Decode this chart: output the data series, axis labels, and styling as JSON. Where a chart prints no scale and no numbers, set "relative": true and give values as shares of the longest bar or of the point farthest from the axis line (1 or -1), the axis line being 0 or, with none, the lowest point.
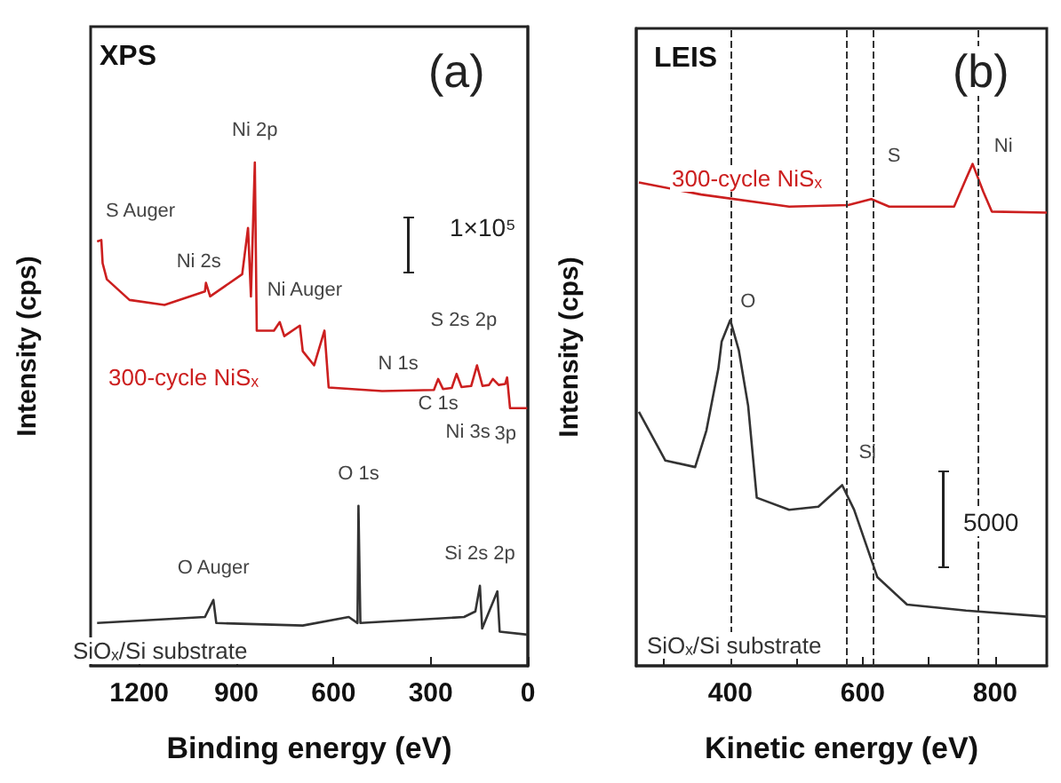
{
  "chart_data": [
    {
      "type": "line",
      "title": "XPS",
      "xlabel": "Binding energy (eV)",
      "ylabel": "Intensity (cps)",
      "relative": true,
      "tick_labels": "x",
      "legend": false,
      "xlim": [
        1350,
        0
      ],
      "xticks": [
        1200,
        900,
        600,
        300,
        0
      ],
      "series": [
        {
          "name": "300-cycle NiSₓ",
          "color": "#cc1f1f",
          "x": [
            1330,
            1317,
            1313,
            1300,
            1230,
            1122,
            997,
            994,
            981,
            882,
            864,
            855,
            843,
            837,
            784,
            766,
            752,
            704,
            695,
            660,
            628,
            615,
            450,
            290,
            277,
            262,
            235,
            220,
            205,
            175,
            157,
            140,
            120,
            108,
            90,
            70,
            64,
            55,
            2
          ],
          "values": [
            0.843,
            0.846,
            0.8,
            0.768,
            0.727,
            0.717,
            0.744,
            0.761,
            0.734,
            0.778,
            0.87,
            0.734,
            1.0,
            0.666,
            0.666,
            0.683,
            0.655,
            0.676,
            0.625,
            0.597,
            0.666,
            0.553,
            0.546,
            0.548,
            0.57,
            0.55,
            0.552,
            0.58,
            0.554,
            0.556,
            0.597,
            0.556,
            0.558,
            0.57,
            0.558,
            0.56,
            0.573,
            0.512,
            0.512
          ]
        },
        {
          "name": "SiOₓ/Si substrate",
          "color": "#333333",
          "x": [
            1330,
            997,
            971,
            962,
            695,
            553,
            526,
            523,
            517,
            197,
            162,
            148,
            141,
            94,
            87,
            2
          ],
          "values": [
            0.085,
            0.097,
            0.131,
            0.085,
            0.08,
            0.097,
            0.085,
            0.318,
            0.085,
            0.097,
            0.108,
            0.159,
            0.074,
            0.148,
            0.068,
            0.062
          ]
        }
      ],
      "annotations": [
        "(a)",
        "1×10⁵",
        {
          "text": "S Auger",
          "x": 1317,
          "y": 0.846
        },
        {
          "text": "Ni 2s",
          "x": 994,
          "y": 0.761
        },
        {
          "text": "Ni 2p",
          "x": 843,
          "y": 1.0
        },
        {
          "text": "Ni Auger",
          "x": 766,
          "y": 0.683
        },
        {
          "text": "N 1s",
          "x": 400,
          "y": 0.55
        },
        {
          "text": "S 2s 2p",
          "x": 220,
          "y": 0.58
        },
        {
          "text": "C 1s",
          "x": 277,
          "y": 0.57
        },
        {
          "text": "Ni 3s",
          "x": 108,
          "y": 0.57
        },
        {
          "text": "3p",
          "x": 64,
          "y": 0.573
        },
        {
          "text": "O Auger",
          "x": 971,
          "y": 0.131
        },
        {
          "text": "O 1s",
          "x": 523,
          "y": 0.318
        },
        {
          "text": "Si 2s 2p",
          "x": 148,
          "y": 0.159
        }
      ]
    },
    {
      "type": "line",
      "title": "LEIS",
      "xlabel": "Kinetic energy (eV)",
      "ylabel": "Intensity (cps)",
      "relative": true,
      "tick_labels": "x",
      "legend": false,
      "xlim": [
        258,
        878
      ],
      "xticks": [
        {
          "value": 300,
          "label": null
        },
        400,
        {
          "value": 500,
          "label": null
        },
        600,
        {
          "value": 700,
          "label": null
        },
        800
      ],
      "series": [
        {
          "name": "300-cycle NiSₓ",
          "color": "#cc1f1f",
          "x": [
            262,
            356,
            489,
            578,
            613,
            640,
            738,
            756,
            766,
            782,
            795,
            878
          ],
          "values": [
            0.963,
            0.939,
            0.915,
            0.918,
            0.93,
            0.915,
            0.915,
            0.97,
            1.0,
            0.945,
            0.905,
            0.903
          ]
        },
        {
          "name": "SiOₓ/Si substrate",
          "color": "#333333",
          "x": [
            262,
            302,
            347,
            364,
            382,
            387,
            400,
            413,
            427,
            440,
            489,
            533,
            569,
            587,
            622,
            667,
            756,
            878
          ],
          "values": [
            0.506,
            0.409,
            0.396,
            0.469,
            0.592,
            0.646,
            0.689,
            0.628,
            0.518,
            0.335,
            0.311,
            0.317,
            0.36,
            0.311,
            0.177,
            0.122,
            0.11,
            0.098
          ]
        }
      ],
      "ref_lines": [
        {
          "axis": "x",
          "value": 400,
          "color": "#333333",
          "line_style": "dashed"
        },
        {
          "axis": "x",
          "value": 575,
          "color": "#333333",
          "line_style": "dashed"
        },
        {
          "axis": "x",
          "value": 615,
          "color": "#333333",
          "line_style": "dashed"
        },
        {
          "axis": "x",
          "value": 775,
          "color": "#333333",
          "line_style": "dashed"
        }
      ],
      "annotations": [
        "(b)",
        "5000",
        {
          "text": "O",
          "x": 400,
          "y": 0.689
        },
        {
          "text": "Si",
          "x": 575,
          "y": 0.36
        },
        {
          "text": "S",
          "x": 615,
          "y": 0.93
        },
        {
          "text": "Ni",
          "x": 775,
          "y": 1.0
        }
      ]
    }
  ]
}
